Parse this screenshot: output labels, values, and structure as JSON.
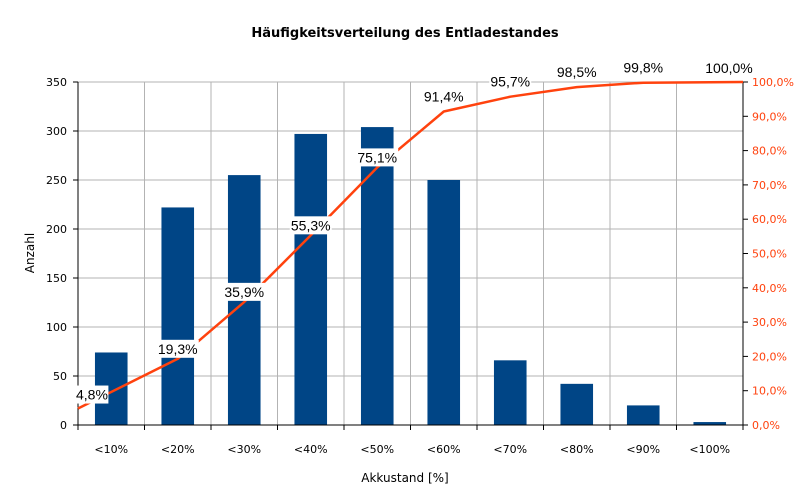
{
  "chart_data": {
    "type": "bar",
    "title": "Häufigkeitsverteilung des Entladestandes",
    "xlabel": "Akkustand [%]",
    "ylabel": "Anzahl",
    "categories": [
      "<10%",
      "<20%",
      "<30%",
      "<40%",
      "<50%",
      "<60%",
      "<70%",
      "<80%",
      "<90%",
      "<100%"
    ],
    "series": [
      {
        "type": "bar",
        "axis": "left",
        "values": [
          74,
          222,
          255,
          297,
          304,
          250,
          66,
          42,
          20,
          3
        ]
      },
      {
        "type": "line",
        "axis": "right",
        "values": [
          4.8,
          19.3,
          35.9,
          55.3,
          75.1,
          91.4,
          95.7,
          98.5,
          99.8,
          100.0
        ],
        "labels": [
          "4,8%",
          "19,3%",
          "35,9%",
          "55,3%",
          "75,1%",
          "91,4%",
          "95,7%",
          "98,5%",
          "99,8%",
          "100,0%"
        ]
      }
    ],
    "ylim": [
      0,
      350
    ],
    "yticks": [
      0,
      50,
      100,
      150,
      200,
      250,
      300,
      350
    ],
    "y2lim": [
      0,
      100
    ],
    "y2ticks": [
      "0,0%",
      "10,0%",
      "20,0%",
      "30,0%",
      "40,0%",
      "50,0%",
      "60,0%",
      "70,0%",
      "80,0%",
      "90,0%",
      "100,0%"
    ],
    "grid": true,
    "colors": {
      "bar": "#004586",
      "line": "#ff420e",
      "grid": "#b3b3b3",
      "right_axis_text": "#ff420e"
    }
  }
}
